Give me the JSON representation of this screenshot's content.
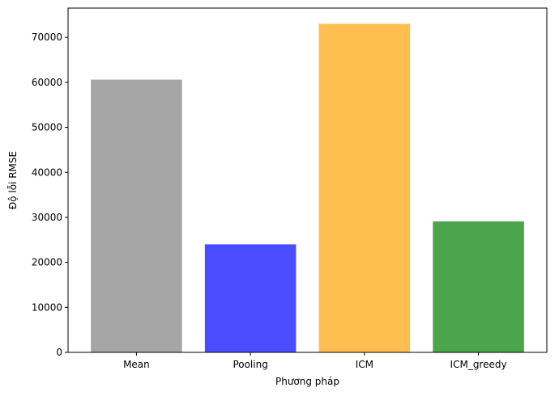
{
  "chart_data": {
    "type": "bar",
    "title": "",
    "xlabel": "Phương pháp",
    "ylabel": "Độ lỗi RMSE",
    "categories": [
      "Mean",
      "Pooling",
      "ICM",
      "ICM_greedy"
    ],
    "values": [
      60600,
      24000,
      73000,
      29100
    ],
    "colors": [
      "#a6a6a6",
      "#4b4bff",
      "#ffbe4f",
      "#4ba64b"
    ],
    "ylim": [
      0,
      76500
    ],
    "yticks": [
      0,
      10000,
      20000,
      30000,
      40000,
      50000,
      60000,
      70000
    ],
    "ytick_labels": [
      "0",
      "10000",
      "20000",
      "30000",
      "40000",
      "50000",
      "60000",
      "70000"
    ],
    "grid": false,
    "legend": "none"
  }
}
